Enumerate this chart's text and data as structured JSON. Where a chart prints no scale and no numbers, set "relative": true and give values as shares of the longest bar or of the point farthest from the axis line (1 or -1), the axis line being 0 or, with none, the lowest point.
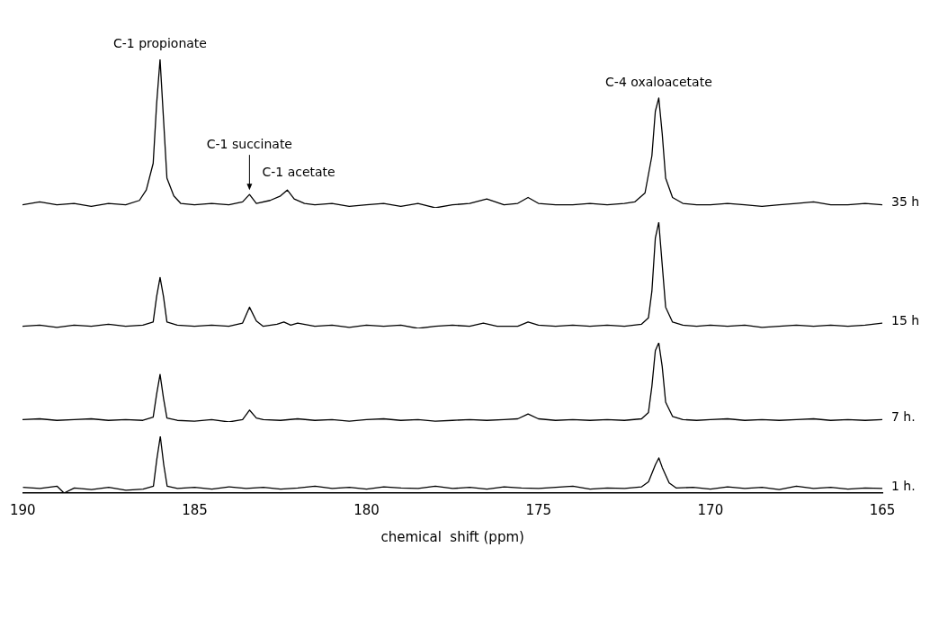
{
  "chart_data": [
    {
      "type": "line",
      "relative": true,
      "xlim": [
        190,
        165
      ],
      "tick_labels": false,
      "grid": false,
      "legend": false,
      "marker": "none",
      "line_style": "solid",
      "annotations": [
        {
          "text": "C-1 propionate",
          "x": 186.0,
          "y": 1.0
        },
        {
          "text": "C-1 succinate",
          "x": 183.4,
          "y": 0.09
        },
        {
          "text": "C-1 acetate",
          "x": 182.3,
          "y": 0.12
        },
        {
          "text": "C-4 oxaloacetate",
          "x": 171.5,
          "y": 0.74
        }
      ],
      "series": [
        {
          "name": "35 h",
          "color": "#000000",
          "x": [
            190,
            189.5,
            189,
            188.5,
            188,
            187.5,
            187,
            186.6,
            186.4,
            186.2,
            186.1,
            186.0,
            185.9,
            185.8,
            185.6,
            185.4,
            185,
            184.5,
            184,
            183.6,
            183.4,
            183.2,
            182.8,
            182.5,
            182.3,
            182.1,
            181.8,
            181.5,
            181,
            180.5,
            180,
            179.5,
            179,
            178.5,
            178,
            177.5,
            177,
            176.5,
            176,
            175.6,
            175.3,
            175,
            174.5,
            174,
            173.5,
            173,
            172.5,
            172.2,
            171.9,
            171.7,
            171.6,
            171.5,
            171.4,
            171.3,
            171.1,
            170.8,
            170.4,
            170,
            169.5,
            169,
            168.5,
            168,
            167.5,
            167,
            166.5,
            166,
            165.5,
            165
          ],
          "values": [
            0.02,
            0.04,
            0.02,
            0.03,
            0.01,
            0.03,
            0.02,
            0.05,
            0.12,
            0.3,
            0.7,
            1.0,
            0.6,
            0.2,
            0.08,
            0.03,
            0.02,
            0.03,
            0.02,
            0.04,
            0.09,
            0.03,
            0.05,
            0.08,
            0.12,
            0.06,
            0.03,
            0.02,
            0.03,
            0.01,
            0.02,
            0.03,
            0.01,
            0.03,
            0,
            0.02,
            0.03,
            0.06,
            0.02,
            0.03,
            0.07,
            0.03,
            0.02,
            0.02,
            0.03,
            0.02,
            0.03,
            0.04,
            0.1,
            0.35,
            0.65,
            0.74,
            0.5,
            0.2,
            0.07,
            0.03,
            0.02,
            0.02,
            0.03,
            0.02,
            0.01,
            0.02,
            0.03,
            0.04,
            0.02,
            0.02,
            0.03,
            0.02
          ]
        }
      ]
    },
    {
      "type": "line",
      "relative": true,
      "xlim": [
        190,
        165
      ],
      "tick_labels": false,
      "grid": false,
      "legend": false,
      "marker": "none",
      "line_style": "solid",
      "series": [
        {
          "name": "15 h",
          "color": "#000000",
          "x": [
            190,
            189.5,
            189,
            188.5,
            188,
            187.5,
            187,
            186.5,
            186.2,
            186.1,
            186.0,
            185.9,
            185.8,
            185.5,
            185,
            184.5,
            184,
            183.6,
            183.4,
            183.2,
            183,
            182.6,
            182.4,
            182.2,
            182,
            181.5,
            181,
            180.5,
            180,
            179.5,
            179,
            178.5,
            178,
            177.5,
            177,
            176.6,
            176.2,
            175.6,
            175.3,
            175,
            174.5,
            174,
            173.5,
            173,
            172.5,
            172,
            171.8,
            171.7,
            171.6,
            171.5,
            171.4,
            171.3,
            171.1,
            170.8,
            170.4,
            170,
            169.5,
            169,
            168.5,
            168,
            167.5,
            167,
            166.5,
            166,
            165.5,
            165
          ],
          "values": [
            0.02,
            0.03,
            0.01,
            0.03,
            0.02,
            0.04,
            0.02,
            0.03,
            0.06,
            0.3,
            0.48,
            0.3,
            0.06,
            0.03,
            0.02,
            0.03,
            0.02,
            0.05,
            0.2,
            0.07,
            0.02,
            0.04,
            0.06,
            0.03,
            0.05,
            0.02,
            0.03,
            0.01,
            0.03,
            0.02,
            0.03,
            0,
            0.02,
            0.03,
            0.02,
            0.05,
            0.02,
            0.02,
            0.06,
            0.03,
            0.02,
            0.03,
            0.02,
            0.03,
            0.02,
            0.04,
            0.1,
            0.35,
            0.85,
            1.0,
            0.6,
            0.2,
            0.06,
            0.03,
            0.02,
            0.03,
            0.02,
            0.03,
            0.01,
            0.02,
            0.03,
            0.02,
            0.03,
            0.02,
            0.03,
            0.05
          ]
        }
      ]
    },
    {
      "type": "line",
      "relative": true,
      "xlim": [
        190,
        165
      ],
      "tick_labels": false,
      "grid": false,
      "legend": false,
      "marker": "none",
      "line_style": "solid",
      "series": [
        {
          "name": "7 h.",
          "color": "#000000",
          "x": [
            190,
            189.5,
            189,
            188.5,
            188,
            187.5,
            187,
            186.5,
            186.2,
            186.1,
            186.0,
            185.9,
            185.8,
            185.5,
            185,
            184.5,
            184,
            183.6,
            183.4,
            183.2,
            183,
            182.5,
            182,
            181.5,
            181,
            180.5,
            180,
            179.5,
            179,
            178.5,
            178,
            177.5,
            177,
            176.5,
            176,
            175.6,
            175.3,
            175,
            174.5,
            174,
            173.5,
            173,
            172.5,
            172,
            171.8,
            171.7,
            171.6,
            171.5,
            171.4,
            171.3,
            171.1,
            170.8,
            170.4,
            170,
            169.5,
            169,
            168.5,
            168,
            167.5,
            167,
            166.5,
            166,
            165.5,
            165
          ],
          "values": [
            0.03,
            0.04,
            0.02,
            0.03,
            0.04,
            0.02,
            0.03,
            0.02,
            0.06,
            0.35,
            0.6,
            0.3,
            0.05,
            0.02,
            0.01,
            0.03,
            0,
            0.03,
            0.15,
            0.05,
            0.03,
            0.02,
            0.04,
            0.02,
            0.03,
            0.01,
            0.03,
            0.04,
            0.02,
            0.03,
            0.01,
            0.02,
            0.03,
            0.02,
            0.03,
            0.04,
            0.1,
            0.04,
            0.02,
            0.03,
            0.02,
            0.03,
            0.02,
            0.04,
            0.12,
            0.45,
            0.9,
            1.0,
            0.7,
            0.25,
            0.07,
            0.03,
            0.02,
            0.03,
            0.04,
            0.02,
            0.03,
            0.02,
            0.03,
            0.04,
            0.02,
            0.03,
            0.02,
            0.03
          ]
        }
      ]
    },
    {
      "type": "line",
      "relative": true,
      "xlim": [
        190,
        165
      ],
      "xticks": [
        190,
        185,
        180,
        175,
        170,
        165
      ],
      "xlabel": "chemical  shift (ppm)",
      "grid": false,
      "legend": false,
      "marker": "none",
      "line_style": "solid",
      "series": [
        {
          "name": "1 h.",
          "color": "#000000",
          "x": [
            190,
            189.5,
            189,
            188.8,
            188.5,
            188,
            187.5,
            187,
            186.5,
            186.2,
            186.1,
            186.0,
            185.9,
            185.8,
            185.5,
            185,
            184.5,
            184,
            183.5,
            183,
            182.5,
            182,
            181.5,
            181,
            180.5,
            180,
            179.5,
            179,
            178.5,
            178,
            177.5,
            177,
            176.5,
            176,
            175.5,
            175,
            174.5,
            174,
            173.5,
            173,
            172.5,
            172,
            171.8,
            171.6,
            171.5,
            171.4,
            171.2,
            171,
            170.5,
            170,
            169.5,
            169,
            168.5,
            168,
            167.5,
            167,
            166.5,
            166,
            165.5,
            165
          ],
          "values": [
            0.1,
            0.08,
            0.12,
            0,
            0.09,
            0.06,
            0.1,
            0.05,
            0.07,
            0.12,
            0.6,
            1.0,
            0.5,
            0.12,
            0.08,
            0.1,
            0.07,
            0.11,
            0.08,
            0.1,
            0.07,
            0.09,
            0.12,
            0.08,
            0.1,
            0.07,
            0.11,
            0.09,
            0.08,
            0.12,
            0.08,
            0.1,
            0.07,
            0.11,
            0.09,
            0.08,
            0.1,
            0.12,
            0.07,
            0.09,
            0.08,
            0.11,
            0.2,
            0.5,
            0.62,
            0.45,
            0.18,
            0.09,
            0.1,
            0.07,
            0.11,
            0.08,
            0.1,
            0.06,
            0.12,
            0.08,
            0.1,
            0.07,
            0.09,
            0.08
          ]
        }
      ]
    }
  ]
}
